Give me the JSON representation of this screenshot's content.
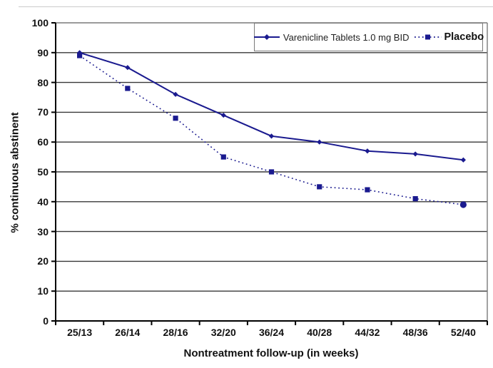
{
  "figure": {
    "series_color": "#1a1a8f",
    "grid_color": "#383838",
    "axis_color": "#000000",
    "plot_border_color": "#7a7a7a",
    "background": "#ffffff"
  },
  "chart_data": {
    "type": "line",
    "title": "",
    "xlabel": "Nontreatment follow-up (in weeks)",
    "ylabel": "% continuous abstinent",
    "categories": [
      "25/13",
      "26/14",
      "28/16",
      "32/20",
      "36/24",
      "40/28",
      "44/32",
      "48/36",
      "52/40"
    ],
    "ylim": [
      0,
      100
    ],
    "yticks": [
      0,
      10,
      20,
      30,
      40,
      50,
      60,
      70,
      80,
      90,
      100
    ],
    "grid": "horizontal",
    "legend_position": "top-right-inside",
    "series": [
      {
        "name": "Varenicline Tablets 1.0 mg BID",
        "values": [
          90,
          85,
          76,
          69,
          62,
          60,
          57,
          56,
          54
        ],
        "line_style": "solid",
        "marker": "diamond",
        "color": "#1a1a8f"
      },
      {
        "name": "Placebo",
        "values": [
          89,
          78,
          68,
          55,
          50,
          45,
          44,
          41,
          39
        ],
        "line_style": "dotted",
        "marker": "square",
        "last_marker": "circle",
        "color": "#1a1a8f"
      }
    ]
  }
}
